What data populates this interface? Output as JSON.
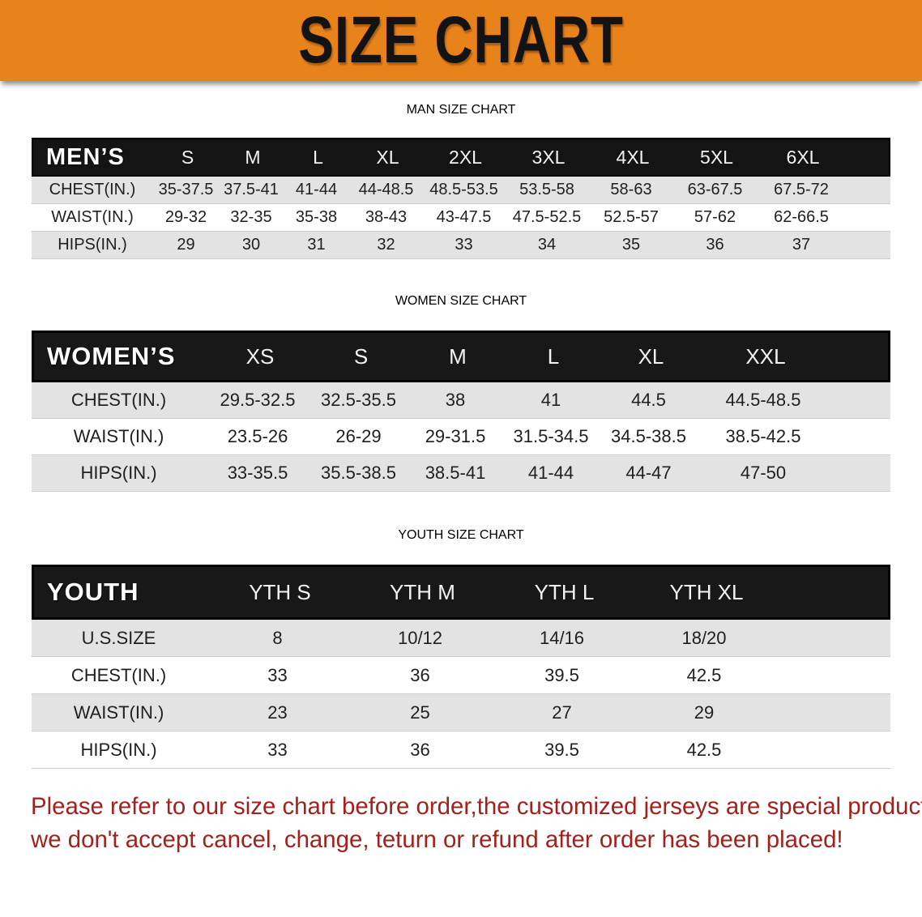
{
  "banner": {
    "title": "SIZE CHART",
    "bg_color": "#e8821b",
    "text_color": "#131313"
  },
  "sections": [
    {
      "heading": "MAN SIZE CHART",
      "label": "MEN’S",
      "columns": [
        "S",
        "M",
        "L",
        "XL",
        "2XL",
        "3XL",
        "4XL",
        "5XL",
        "6XL"
      ],
      "rows": [
        {
          "label": "CHEST(IN.)",
          "values": [
            "35-37.5",
            "37.5-41",
            "41-44",
            "44-48.5",
            "48.5-53.5",
            "53.5-58",
            "58-63",
            "63-67.5",
            "67.5-72"
          ]
        },
        {
          "label": "WAIST(IN.)",
          "values": [
            "29-32",
            "32-35",
            "35-38",
            "38-43",
            "43-47.5",
            "47.5-52.5",
            "52.5-57",
            "57-62",
            "62-66.5"
          ]
        },
        {
          "label": "HIPS(IN.)",
          "values": [
            "29",
            "30",
            "31",
            "32",
            "33",
            "34",
            "35",
            "36",
            "37"
          ]
        }
      ]
    },
    {
      "heading": "WOMEN SIZE CHART",
      "label": "WOMEN’S",
      "columns": [
        "XS",
        "S",
        "M",
        "L",
        "XL",
        "XXL"
      ],
      "rows": [
        {
          "label": "CHEST(IN.)",
          "values": [
            "29.5-32.5",
            "32.5-35.5",
            "38",
            "41",
            "44.5",
            "44.5-48.5"
          ]
        },
        {
          "label": "WAIST(IN.)",
          "values": [
            "23.5-26",
            "26-29",
            "29-31.5",
            "31.5-34.5",
            "34.5-38.5",
            "38.5-42.5"
          ]
        },
        {
          "label": "HIPS(IN.)",
          "values": [
            "33-35.5",
            "35.5-38.5",
            "38.5-41",
            "41-44",
            "44-47",
            "47-50"
          ]
        }
      ]
    },
    {
      "heading": "YOUTH SIZE CHART",
      "label": "YOUTH",
      "columns": [
        "YTH S",
        "YTH M",
        "YTH L",
        "YTH XL"
      ],
      "rows": [
        {
          "label": "U.S.SIZE",
          "values": [
            "8",
            "10/12",
            "14/16",
            "18/20"
          ]
        },
        {
          "label": "CHEST(IN.)",
          "values": [
            "33",
            "36",
            "39.5",
            "42.5"
          ]
        },
        {
          "label": "WAIST(IN.)",
          "values": [
            "23",
            "25",
            "27",
            "29"
          ]
        },
        {
          "label": "HIPS(IN.)",
          "values": [
            "33",
            "36",
            "39.5",
            "42.5"
          ]
        }
      ]
    }
  ],
  "disclaimer": {
    "line1": "Please refer to our size chart before order,the customized jerseys are special products,",
    "line2": "we don't accept cancel, change, teturn or refund after order has been placed!",
    "color": "#a1221c"
  }
}
